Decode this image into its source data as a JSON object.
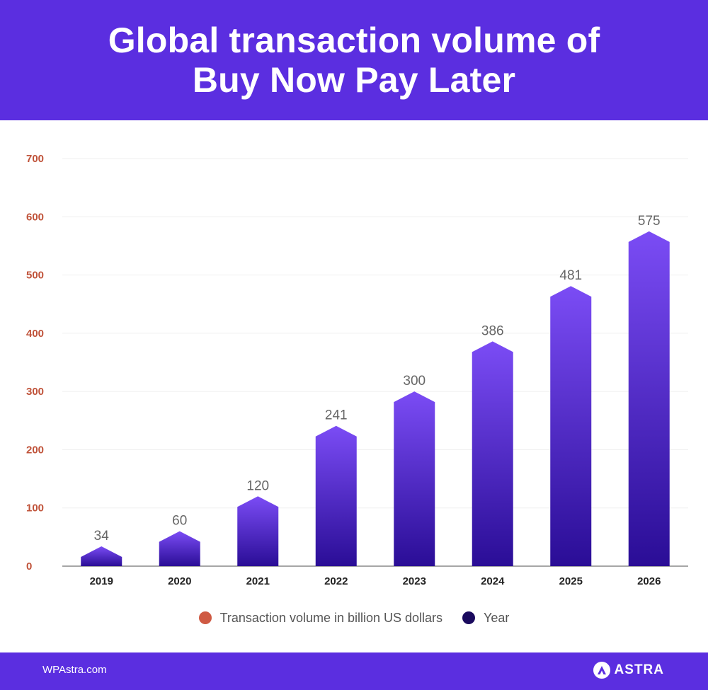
{
  "header": {
    "title": "Global transaction volume of Buy Now Pay Later"
  },
  "chart_data": {
    "type": "bar",
    "title": "Global transaction volume of Buy Now Pay Later",
    "categories": [
      "2019",
      "2020",
      "2021",
      "2022",
      "2023",
      "2024",
      "2025",
      "2026"
    ],
    "values": [
      34,
      60,
      120,
      241,
      300,
      386,
      481,
      575
    ],
    "series": [
      {
        "name": "Transaction volume in billion US dollars",
        "values": [
          34,
          60,
          120,
          241,
          300,
          386,
          481,
          575
        ]
      }
    ],
    "ylim": [
      0,
      700
    ],
    "yticks": [
      "0",
      "100",
      "200",
      "300",
      "400",
      "500",
      "600",
      "700"
    ],
    "xlabel": "",
    "ylabel": "",
    "grid": true,
    "legend_position": "bottom"
  },
  "colors": {
    "brand": "#5b2ee0",
    "bar_top": "#7b4cf5",
    "bar_bottom": "#2a0d96",
    "tick": "#c0533a",
    "value_label": "#666666"
  },
  "legend": {
    "items": [
      {
        "label": "Transaction volume in billion US dollars",
        "color": "#cf5a43"
      },
      {
        "label": "Year",
        "color": "#1a0a5e"
      }
    ]
  },
  "footer": {
    "source": "WPAstra.com",
    "brand": "ASTRA"
  }
}
